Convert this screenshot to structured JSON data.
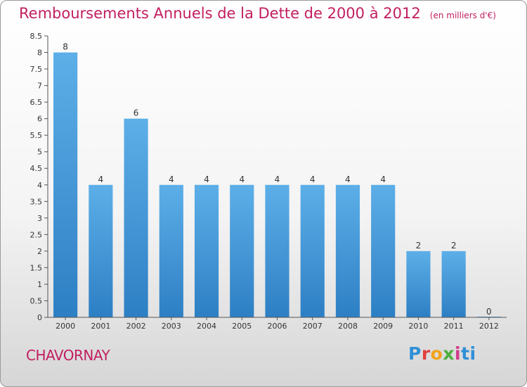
{
  "page": {
    "title": "Remboursements Annuels de la Dette de 2000 à 2012",
    "unit": "(en milliers d'€)",
    "place": "CHAVORNAY",
    "logo": "Proxiti"
  },
  "colors": {
    "title": "#c21e60",
    "bar_top": "#5dafe8",
    "bar_bottom": "#2d7fc4",
    "axis": "#555555"
  },
  "chart_data": {
    "type": "bar",
    "title": "Remboursements Annuels de la Dette de 2000 à 2012",
    "ylabel": "(en milliers d'€)",
    "xlabel": "",
    "categories": [
      "2000",
      "2001",
      "2002",
      "2003",
      "2004",
      "2005",
      "2006",
      "2007",
      "2008",
      "2009",
      "2010",
      "2011",
      "2012"
    ],
    "values": [
      8,
      4,
      6,
      4,
      4,
      4,
      4,
      4,
      4,
      4,
      2,
      2,
      0
    ],
    "data_labels": [
      "8",
      "4",
      "6",
      "4",
      "4",
      "4",
      "4",
      "4",
      "4",
      "4",
      "2",
      "2",
      "0"
    ],
    "ylim": [
      0,
      8.5
    ],
    "yticks": [
      0,
      0.5,
      1,
      1.5,
      2,
      2.5,
      3,
      3.5,
      4,
      4.5,
      5,
      5.5,
      6,
      6.5,
      7,
      7.5,
      8,
      8.5
    ],
    "ytick_labels": [
      "0",
      "0.5",
      "1",
      "1.5",
      "2",
      "2.5",
      "3",
      "3.5",
      "4",
      "4.5",
      "5",
      "5.5",
      "6",
      "6.5",
      "7",
      "7.5",
      "8",
      "8.5"
    ],
    "grid": false,
    "legend": "none"
  }
}
